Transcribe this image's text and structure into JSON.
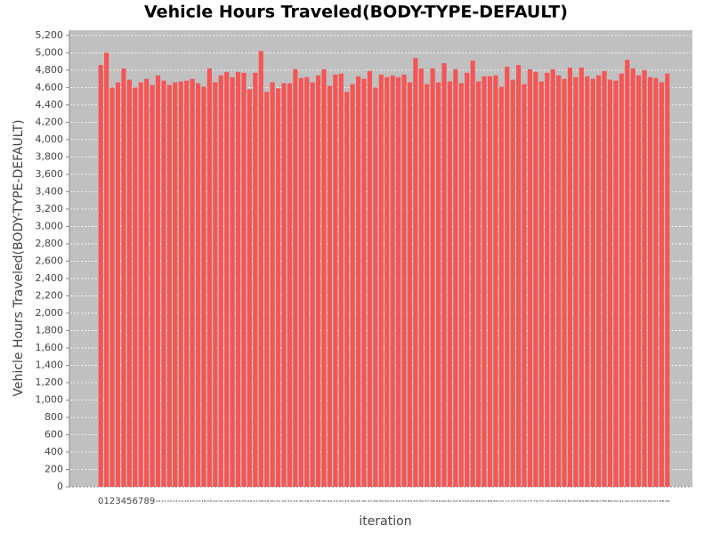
{
  "chart_data": {
    "type": "bar",
    "title": "Vehicle Hours Traveled(BODY-TYPE-DEFAULT)",
    "x_label": "iteration",
    "y_label": "Vehicle Hours Traveled(BODY-TYPE-DEFAULT)",
    "color": "#f55555",
    "grid": true,
    "categories": [
      "0",
      "1",
      "2",
      "3",
      "4",
      "5",
      "6",
      "7",
      "8",
      "9",
      "10",
      "11",
      "12",
      "13",
      "14",
      "15",
      "16",
      "17",
      "18",
      "19",
      "20",
      "21",
      "22",
      "23",
      "24",
      "25",
      "26",
      "27",
      "28",
      "29",
      "30",
      "31",
      "32",
      "33",
      "34",
      "35",
      "36",
      "37",
      "38",
      "39",
      "40",
      "41",
      "42",
      "43",
      "44",
      "45",
      "46",
      "47",
      "48",
      "49",
      "50",
      "51",
      "52",
      "53",
      "54",
      "55",
      "56",
      "57",
      "58",
      "59",
      "60",
      "61",
      "62",
      "63",
      "64",
      "65",
      "66",
      "67",
      "68",
      "69",
      "70",
      "71",
      "72",
      "73",
      "74",
      "75",
      "76",
      "77",
      "78",
      "79",
      "80",
      "81",
      "82",
      "83",
      "84",
      "85",
      "86",
      "87",
      "88",
      "89",
      "90",
      "91",
      "92",
      "93",
      "94",
      "95",
      "96",
      "97",
      "98",
      "99"
    ],
    "values": [
      4860,
      5000,
      4600,
      4660,
      4820,
      4690,
      4600,
      4660,
      4700,
      4630,
      4740,
      4680,
      4630,
      4660,
      4670,
      4680,
      4700,
      4650,
      4610,
      4820,
      4660,
      4740,
      4780,
      4720,
      4780,
      4770,
      4580,
      4770,
      5020,
      4550,
      4660,
      4590,
      4650,
      4650,
      4810,
      4710,
      4720,
      4660,
      4740,
      4810,
      4620,
      4750,
      4760,
      4550,
      4640,
      4730,
      4700,
      4790,
      4600,
      4750,
      4720,
      4740,
      4720,
      4750,
      4660,
      4940,
      4820,
      4640,
      4820,
      4660,
      4880,
      4670,
      4810,
      4650,
      4770,
      4910,
      4670,
      4730,
      4730,
      4740,
      4610,
      4840,
      4690,
      4860,
      4640,
      4810,
      4780,
      4670,
      4770,
      4810,
      4740,
      4700,
      4830,
      4720,
      4830,
      4730,
      4700,
      4740,
      4790,
      4690,
      4680,
      4760,
      4920,
      4820,
      4740,
      4800,
      4720,
      4710,
      4660,
      4760
    ],
    "ylim": [
      0,
      5260
    ],
    "yticks": [
      0,
      200,
      400,
      600,
      800,
      {
        "value": 1000,
        "label": "1,000"
      },
      {
        "value": 1200,
        "label": "1,200"
      },
      {
        "value": 1400,
        "label": "1,400"
      },
      {
        "value": 1600,
        "label": "1,600"
      },
      {
        "value": 1800,
        "label": "1,800"
      },
      {
        "value": 2000,
        "label": "2,000"
      },
      {
        "value": 2200,
        "label": "2,200"
      },
      {
        "value": 2400,
        "label": "2,400"
      },
      {
        "value": 2600,
        "label": "2,600"
      },
      {
        "value": 2800,
        "label": "2,800"
      },
      {
        "value": 3000,
        "label": "3,000"
      },
      {
        "value": 3200,
        "label": "3,200"
      },
      {
        "value": 3400,
        "label": "3,400"
      },
      {
        "value": 3600,
        "label": "3,600"
      },
      {
        "value": 3800,
        "label": "3,800"
      },
      {
        "value": 4000,
        "label": "4,000"
      },
      {
        "value": 4200,
        "label": "4,200"
      },
      {
        "value": 4400,
        "label": "4,400"
      },
      {
        "value": 4600,
        "label": "4,600"
      },
      {
        "value": 4800,
        "label": "4,800"
      },
      {
        "value": 5000,
        "label": "5,000"
      },
      {
        "value": 5200,
        "label": "5,200"
      }
    ]
  }
}
